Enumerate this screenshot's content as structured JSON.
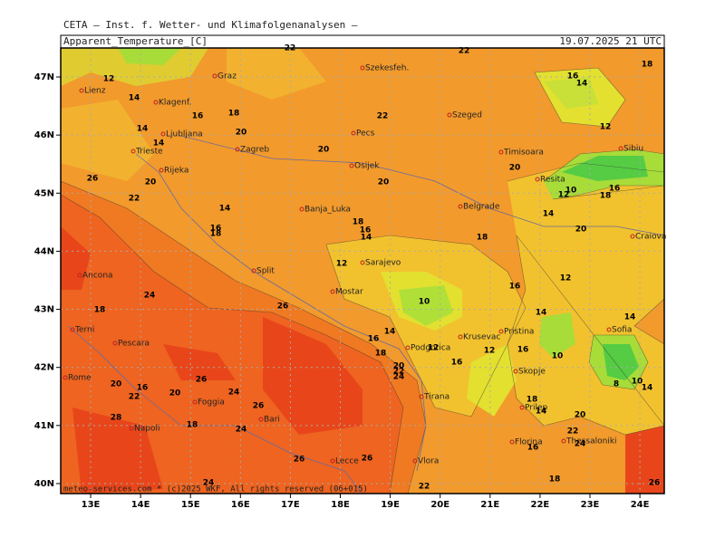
{
  "header": {
    "institute": "CETA — Inst. f. Wetter- und Klimafolgenanalysen —",
    "title": "Apparent_Temperature_[C]",
    "date": "19.07.2025 21 UTC"
  },
  "footer": "meteo-services.com * (c)2025 WKF, All rights reserved (06+015)",
  "lat_ticks": [
    {
      "value": 47,
      "label": "47N"
    },
    {
      "value": 46,
      "label": "46N"
    },
    {
      "value": 45,
      "label": "45N"
    },
    {
      "value": 44,
      "label": "44N"
    },
    {
      "value": 43,
      "label": "43N"
    },
    {
      "value": 42,
      "label": "42N"
    },
    {
      "value": 41,
      "label": "41N"
    },
    {
      "value": 40,
      "label": "40N"
    }
  ],
  "lon_ticks": [
    {
      "value": 13,
      "label": "13E"
    },
    {
      "value": 14,
      "label": "14E"
    },
    {
      "value": 15,
      "label": "15E"
    },
    {
      "value": 16,
      "label": "16E"
    },
    {
      "value": 17,
      "label": "17E"
    },
    {
      "value": 18,
      "label": "18E"
    },
    {
      "value": 19,
      "label": "19E"
    },
    {
      "value": 20,
      "label": "20E"
    },
    {
      "value": 21,
      "label": "21E"
    },
    {
      "value": 22,
      "label": "22E"
    },
    {
      "value": 23,
      "label": "23E"
    },
    {
      "value": 24,
      "label": "24E"
    }
  ],
  "cities": [
    "Lienz",
    "Graz",
    "Szekesfeh.",
    "Klagenf.",
    "Ljubljana",
    "Pecs",
    "Szeged",
    "Zagreb",
    "Trieste",
    "Rijeka",
    "Osijek",
    "Timisoara",
    "Sibiu",
    "Resita",
    "Banja_Luka",
    "Belgrade",
    "Craiova",
    "Sarajevo",
    "Split",
    "Ancona",
    "Mostar",
    "Terni",
    "Pristina",
    "Sofia",
    "Pescara",
    "Podgorica",
    "Krusevac",
    "Rome",
    "Skopje",
    "Foggia",
    "Tirana",
    "Prilep",
    "Bari",
    "Napoli",
    "Florina",
    "Thessaloniki",
    "Vlora",
    "Lecce"
  ],
  "contour_labels": [
    12,
    14,
    16,
    18,
    14,
    14,
    20,
    20,
    22,
    22,
    22,
    18,
    16,
    14,
    12,
    26,
    20,
    22,
    14,
    16,
    18,
    18,
    16,
    14,
    20,
    18,
    20,
    14,
    20,
    10,
    12,
    18,
    16,
    12,
    12,
    16,
    24,
    26,
    10,
    18,
    14,
    14,
    14,
    16,
    18,
    12,
    12,
    16,
    10,
    16,
    20,
    22,
    24,
    20,
    16,
    22,
    20,
    26,
    24,
    26,
    8,
    10,
    14,
    18,
    14,
    20,
    28,
    18,
    24,
    22,
    24,
    16,
    26,
    26,
    18,
    22,
    24,
    26
  ]
}
